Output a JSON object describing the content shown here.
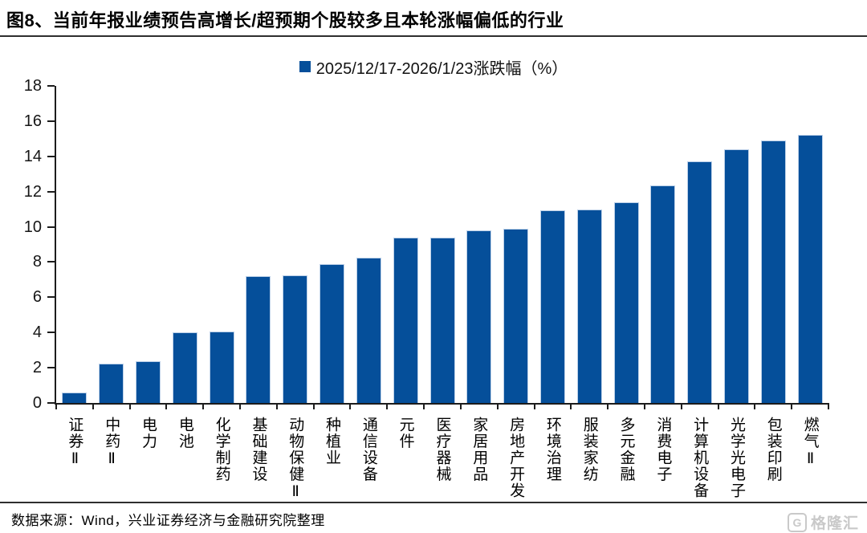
{
  "page": {
    "title": "图8、当前年报业绩预告高增长/超预期个股较多且本轮涨幅偏低的行业",
    "footer_source": "数据来源：Wind，兴业证券经济与金融研究院整理",
    "watermark": {
      "icon": "G",
      "text": "格隆汇"
    }
  },
  "chart_data": {
    "type": "bar",
    "title": "图8、当前年报业绩预告高增长/超预期个股较多且本轮涨幅偏低的行业",
    "legend": "2025/12/17-2026/1/23涨跌幅（%）",
    "legend_position": "top-center",
    "xlabel": "",
    "ylabel": "",
    "ylim": [
      0,
      18
    ],
    "yticks": [
      0,
      2,
      4,
      6,
      8,
      10,
      12,
      14,
      16,
      18
    ],
    "grid": false,
    "bar_color": "#054f9a",
    "bar_border_color": "#bcd0e8",
    "categories": [
      "证券Ⅱ",
      "中药Ⅱ",
      "电力",
      "电池",
      "化学制药",
      "基础建设",
      "动物保健Ⅱ",
      "种植业",
      "通信设备",
      "元件",
      "医疗器械",
      "家居用品",
      "房地产开发",
      "环境治理",
      "服装家纺",
      "多元金融",
      "消费电子",
      "计算机设备",
      "光学光电子",
      "包装印刷",
      "燃气Ⅱ"
    ],
    "values": [
      0.6,
      2.25,
      2.35,
      4.0,
      4.05,
      7.2,
      7.25,
      7.9,
      8.25,
      9.4,
      9.4,
      9.8,
      9.9,
      10.95,
      11.0,
      11.4,
      12.35,
      13.7,
      14.4,
      14.9,
      15.2
    ]
  }
}
